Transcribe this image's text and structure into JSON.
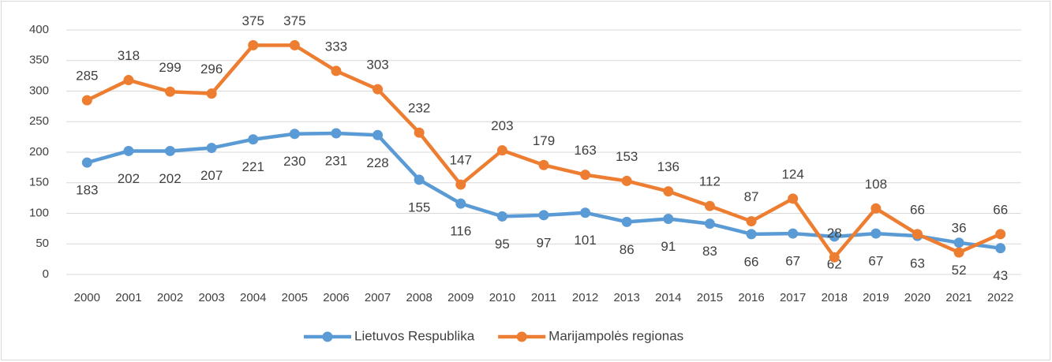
{
  "chart_data": {
    "type": "line",
    "categories": [
      "2000",
      "2001",
      "2002",
      "2003",
      "2004",
      "2005",
      "2006",
      "2007",
      "2008",
      "2009",
      "2010",
      "2011",
      "2012",
      "2013",
      "2014",
      "2015",
      "2016",
      "2017",
      "2018",
      "2019",
      "2020",
      "2021",
      "2022"
    ],
    "series": [
      {
        "name": "Lietuvos Respublika",
        "color": "#5b9bd5",
        "values": [
          183,
          202,
          202,
          207,
          221,
          230,
          231,
          228,
          155,
          116,
          95,
          97,
          101,
          86,
          91,
          83,
          66,
          67,
          62,
          67,
          63,
          52,
          43
        ]
      },
      {
        "name": "Marijampolės regionas",
        "color": "#ed7d31",
        "values": [
          285,
          318,
          299,
          296,
          375,
          375,
          333,
          303,
          232,
          147,
          203,
          179,
          163,
          153,
          136,
          112,
          87,
          124,
          28,
          108,
          66,
          36,
          66
        ]
      }
    ],
    "ylim": [
      0,
      400
    ],
    "yticks": [
      0,
      50,
      100,
      150,
      200,
      250,
      300,
      350,
      400
    ],
    "grid": true,
    "legend": "bottom"
  }
}
